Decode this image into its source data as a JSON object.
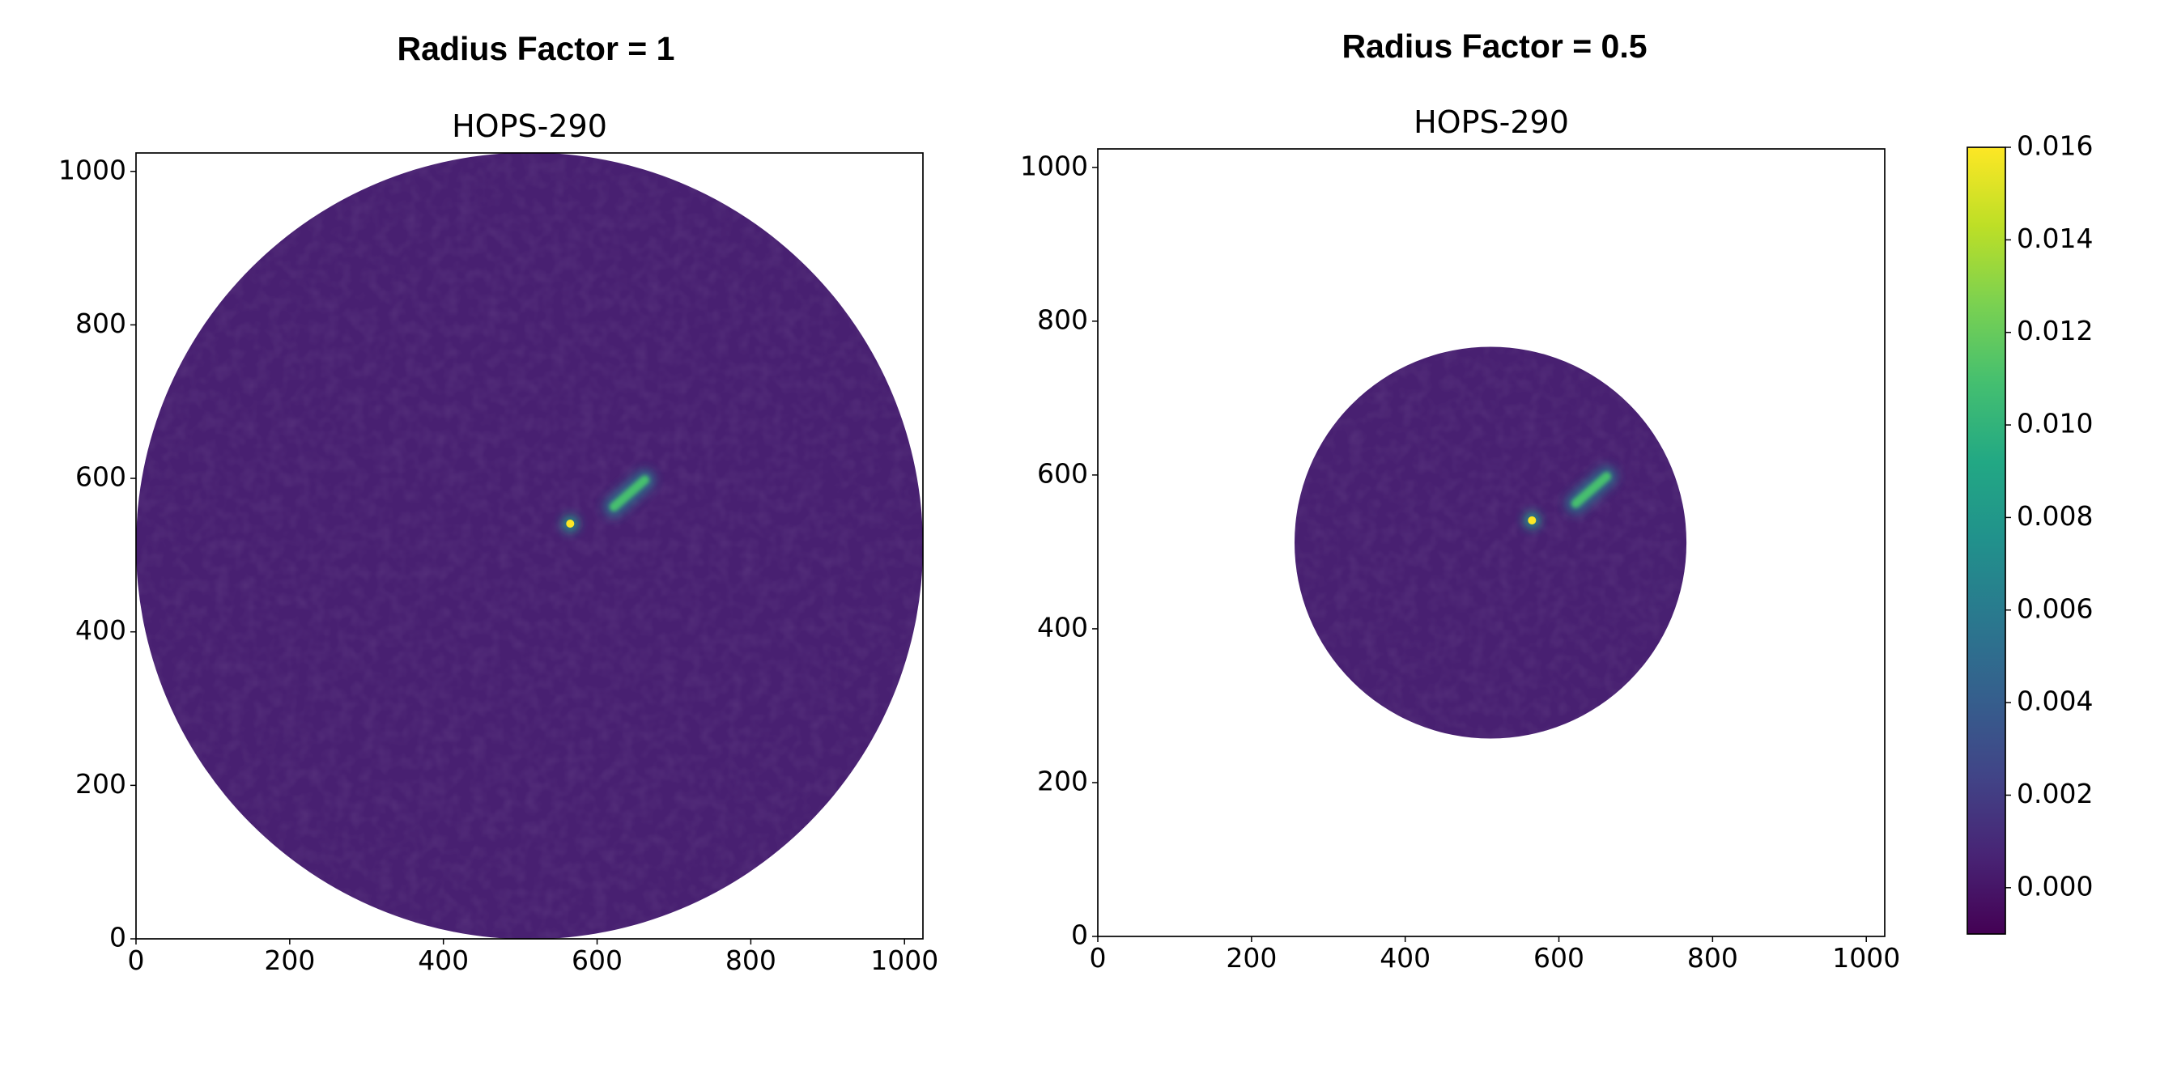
{
  "chart_data": [
    {
      "type": "image",
      "suptitle": "Radius Factor = 1",
      "title": "HOPS-290",
      "xlim": [
        0,
        1024
      ],
      "ylim": [
        0,
        1024
      ],
      "xticks": [
        0,
        200,
        400,
        600,
        800,
        1000
      ],
      "yticks": [
        0,
        200,
        400,
        600,
        800,
        1000
      ],
      "colormap": "viridis",
      "background": 0.0005,
      "mask": {
        "x": 512,
        "y": 512,
        "radius": 512
      },
      "sources": [
        {
          "x": 565,
          "y": 541,
          "value": 0.016
        },
        {
          "x": [
            622,
            662
          ],
          "y": [
            563,
            598
          ],
          "value": 0.011
        }
      ]
    },
    {
      "type": "image",
      "suptitle": "Radius Factor = 0.5",
      "title": "HOPS-290",
      "xlim": [
        0,
        1024
      ],
      "ylim": [
        0,
        1024
      ],
      "xticks": [
        0,
        200,
        400,
        600,
        800,
        1000
      ],
      "yticks": [
        0,
        200,
        400,
        600,
        800,
        1000
      ],
      "colormap": "viridis",
      "background": 0.0005,
      "mask": {
        "x": 511,
        "y": 512,
        "radius": 255
      },
      "sources": [
        {
          "x": 565,
          "y": 541,
          "value": 0.016
        },
        {
          "x": [
            622,
            662
          ],
          "y": [
            563,
            598
          ],
          "value": 0.011
        }
      ]
    },
    {
      "type": "colorbar",
      "colormap": "viridis",
      "ylim": [
        -0.001,
        0.016
      ],
      "yticks": [
        {
          "value": 0,
          "label": "0.000"
        },
        {
          "value": 0.002,
          "label": "0.002"
        },
        {
          "value": 0.004,
          "label": "0.004"
        },
        {
          "value": 0.006,
          "label": "0.006"
        },
        {
          "value": 0.008,
          "label": "0.008"
        },
        {
          "value": 0.01,
          "label": "0.010"
        },
        {
          "value": 0.012,
          "label": "0.012"
        },
        {
          "value": 0.014,
          "label": "0.014"
        },
        {
          "value": 0.016,
          "label": "0.016"
        }
      ]
    }
  ]
}
